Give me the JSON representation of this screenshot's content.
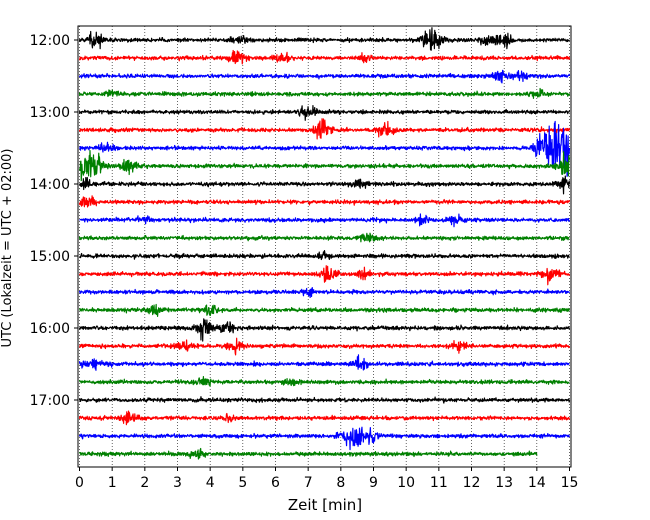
{
  "chart_data": {
    "type": "line",
    "xlabel": "Zeit  [min]",
    "ylabel": "UTC (Lokalzeit = UTC + 02:00)",
    "xlim": [
      0,
      15
    ],
    "x_ticks": [
      "0",
      "1",
      "2",
      "3",
      "4",
      "5",
      "6",
      "7",
      "8",
      "9",
      "10",
      "11",
      "12",
      "13",
      "14",
      "15"
    ],
    "y_ticks": [
      "12:00",
      "13:00",
      "14:00",
      "15:00",
      "16:00",
      "17:00"
    ],
    "grid": "vertical dotted",
    "colors": [
      "#000000",
      "#ff0000",
      "#0000ff",
      "#008000"
    ],
    "row_interval_min": 15,
    "traces": [
      {
        "start": "12:00",
        "color": "#000000",
        "bursts": [
          [
            0.5,
            0.6
          ],
          [
            4.9,
            0.4
          ],
          [
            10.8,
            1.0
          ],
          [
            12.5,
            0.5
          ],
          [
            13.0,
            0.6
          ]
        ]
      },
      {
        "start": "12:15",
        "color": "#ff0000",
        "bursts": [
          [
            4.8,
            0.7
          ],
          [
            6.2,
            0.5
          ],
          [
            8.8,
            0.4
          ]
        ]
      },
      {
        "start": "12:30",
        "color": "#0000ff",
        "bursts": [
          [
            12.9,
            0.5
          ],
          [
            13.5,
            0.4
          ]
        ]
      },
      {
        "start": "12:45",
        "color": "#008000",
        "bursts": [
          [
            1.0,
            0.35
          ],
          [
            14.0,
            0.4
          ]
        ]
      },
      {
        "start": "13:00",
        "color": "#000000",
        "bursts": [
          [
            7.0,
            0.6
          ]
        ]
      },
      {
        "start": "13:15",
        "color": "#ff0000",
        "bursts": [
          [
            7.4,
            0.9
          ],
          [
            9.4,
            0.7
          ]
        ]
      },
      {
        "start": "13:30",
        "color": "#0000ff",
        "bursts": [
          [
            0.8,
            0.4
          ],
          [
            14.2,
            0.9
          ],
          [
            14.9,
            3.0
          ]
        ]
      },
      {
        "start": "13:45",
        "color": "#008000",
        "bursts": [
          [
            0.3,
            1.5
          ],
          [
            1.5,
            0.6
          ],
          [
            14.9,
            1.0
          ]
        ]
      },
      {
        "start": "14:00",
        "color": "#000000",
        "bursts": [
          [
            0.2,
            0.4
          ],
          [
            8.6,
            0.5
          ],
          [
            14.9,
            0.6
          ]
        ]
      },
      {
        "start": "14:15",
        "color": "#ff0000",
        "bursts": [
          [
            0.3,
            0.6
          ]
        ]
      },
      {
        "start": "14:30",
        "color": "#0000ff",
        "bursts": [
          [
            2.0,
            0.3
          ],
          [
            10.5,
            0.4
          ],
          [
            11.5,
            0.4
          ]
        ]
      },
      {
        "start": "14:45",
        "color": "#008000",
        "bursts": [
          [
            8.8,
            0.5
          ]
        ]
      },
      {
        "start": "15:00",
        "color": "#000000",
        "bursts": [
          [
            7.5,
            0.3
          ]
        ]
      },
      {
        "start": "15:15",
        "color": "#ff0000",
        "bursts": [
          [
            7.6,
            0.7
          ],
          [
            8.7,
            0.4
          ],
          [
            14.4,
            0.7
          ]
        ]
      },
      {
        "start": "15:30",
        "color": "#0000ff",
        "bursts": [
          [
            7.0,
            0.3
          ]
        ]
      },
      {
        "start": "15:45",
        "color": "#008000",
        "bursts": [
          [
            2.3,
            0.5
          ],
          [
            4.0,
            0.5
          ]
        ]
      },
      {
        "start": "16:00",
        "color": "#000000",
        "bursts": [
          [
            3.8,
            0.8
          ],
          [
            4.5,
            0.5
          ]
        ]
      },
      {
        "start": "16:15",
        "color": "#ff0000",
        "bursts": [
          [
            3.2,
            0.5
          ],
          [
            4.8,
            0.6
          ],
          [
            11.6,
            0.5
          ]
        ]
      },
      {
        "start": "16:30",
        "color": "#0000ff",
        "bursts": [
          [
            0.4,
            0.6
          ],
          [
            8.6,
            0.5
          ]
        ]
      },
      {
        "start": "16:45",
        "color": "#008000",
        "bursts": [
          [
            3.8,
            0.4
          ],
          [
            6.5,
            0.4
          ]
        ]
      },
      {
        "start": "17:00",
        "color": "#000000",
        "bursts": []
      },
      {
        "start": "17:15",
        "color": "#ff0000",
        "bursts": [
          [
            1.5,
            0.6
          ],
          [
            4.6,
            0.3
          ]
        ]
      },
      {
        "start": "17:30",
        "color": "#0000ff",
        "bursts": [
          [
            8.4,
            1.3
          ],
          [
            8.9,
            0.6
          ]
        ]
      },
      {
        "start": "17:45",
        "color": "#008000",
        "bursts": [
          [
            3.6,
            0.4
          ]
        ],
        "end": 14.0
      }
    ]
  }
}
